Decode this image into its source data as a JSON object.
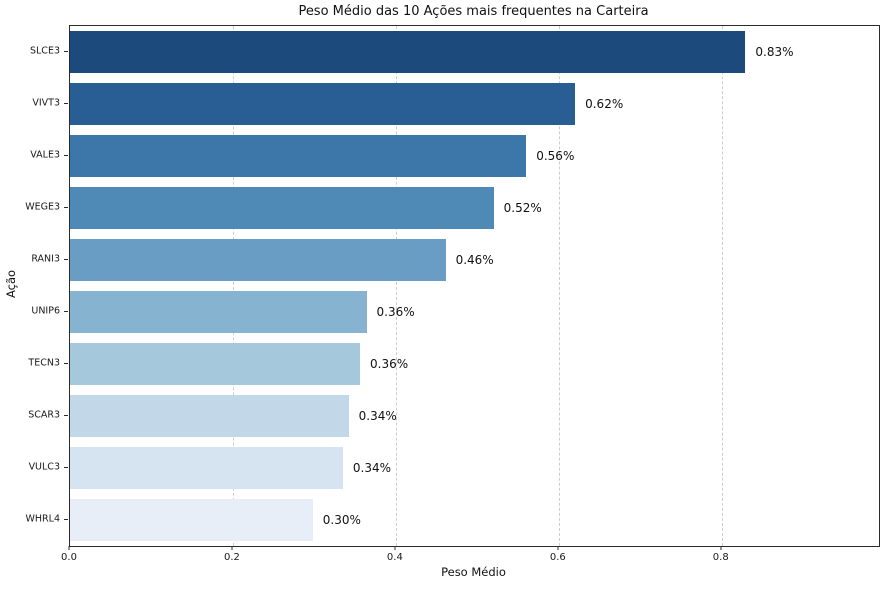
{
  "chart_data": {
    "type": "bar",
    "orientation": "horizontal",
    "title": "Peso Médio das 10 Ações mais frequentes na Carteira",
    "xlabel": "Peso Médio",
    "ylabel": "Ação",
    "categories": [
      "SLCE3",
      "VIVT3",
      "VALE3",
      "WEGE3",
      "RANI3",
      "UNIP6",
      "TECN3",
      "SCAR3",
      "VULC3",
      "WHRL4"
    ],
    "values": [
      0.829,
      0.62,
      0.56,
      0.52,
      0.461,
      0.364,
      0.356,
      0.342,
      0.335,
      0.298
    ],
    "value_labels": [
      "0.83%",
      "0.62%",
      "0.56%",
      "0.52%",
      "0.46%",
      "0.36%",
      "0.36%",
      "0.34%",
      "0.34%",
      "0.30%"
    ],
    "bar_colors": [
      "#1c4a7c",
      "#285e93",
      "#3d76a8",
      "#4f8ab6",
      "#699dc3",
      "#86b3cf",
      "#a5c8dd",
      "#c2d8e8",
      "#d6e3f0",
      "#e7eef7"
    ],
    "xlim": [
      0.0,
      0.993
    ],
    "xticks": [
      0.0,
      0.2,
      0.4,
      0.6,
      0.8
    ],
    "xtick_labels": [
      "0.0",
      "0.2",
      "0.4",
      "0.6",
      "0.8"
    ],
    "grid": "vertical-dashed",
    "legend": "none",
    "colors": {
      "grid": "#cdcdcd",
      "spine": "#2b2b2b",
      "text": "#111111",
      "background": "#ffffff"
    }
  }
}
